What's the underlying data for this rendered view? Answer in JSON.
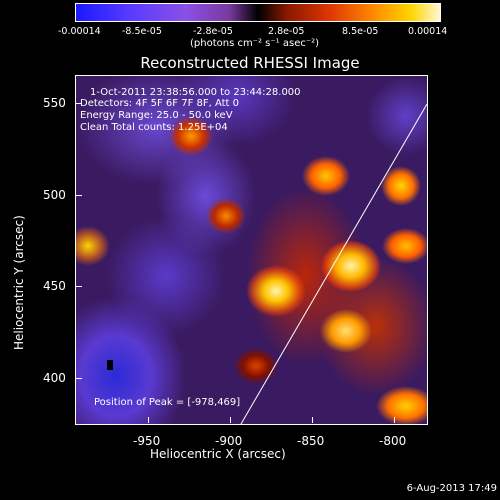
{
  "colorbar": {
    "ticks": [
      "-0.00014",
      "-8.5e-05",
      "-2.8e-05",
      "2.8e-05",
      "8.5e-05",
      "0.00014"
    ],
    "units": "(photons cm⁻² s⁻¹ asec⁻²)"
  },
  "title": "Reconstructed RHESSI Image",
  "info": {
    "time_range": "1-Oct-2011 23:38:56.000 to 23:44:28.000",
    "detectors": "Detectors: 4F 5F 6F 7F 8F, Att 0",
    "energy": "Energy Range: 25.0 - 50.0 keV",
    "clean": "Clean    Total counts: 1.25E+04",
    "peak": "Position of Peak = [-978,469]"
  },
  "axes": {
    "xlabel": "Heliocentric X (arcsec)",
    "ylabel": "Heliocentric Y (arcsec)",
    "xticks": [
      "-950",
      "-900",
      "-850",
      "-800"
    ],
    "yticks": [
      "550",
      "500",
      "450",
      "400"
    ]
  },
  "timestamp": "6-Aug-2013 17:49"
}
